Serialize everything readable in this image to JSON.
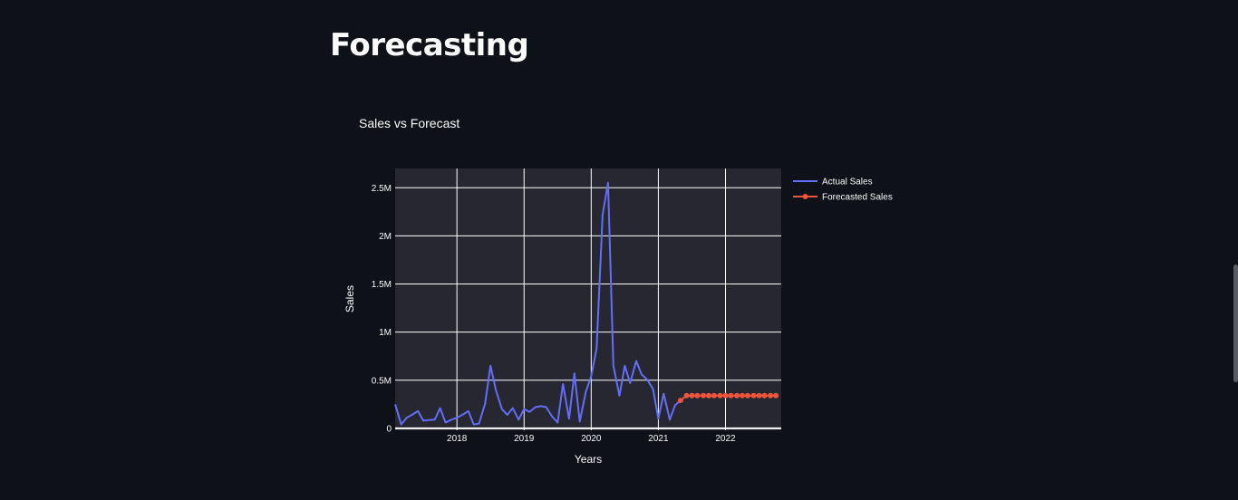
{
  "page": {
    "title": "Forecasting"
  },
  "chart_data": {
    "type": "line",
    "title": "Sales vs Forecast",
    "xlabel": "Years",
    "ylabel": "Sales",
    "x_ticks": [
      "2018",
      "2019",
      "2020",
      "2021",
      "2022"
    ],
    "y_ticks": [
      "0",
      "0.5M",
      "1M",
      "1.5M",
      "2M",
      "2.5M"
    ],
    "ylim": [
      -20000,
      2700000
    ],
    "xlim": [
      2017.08,
      2022.83
    ],
    "grid": true,
    "legend_position": "top-right-outside",
    "colors": {
      "actual": "#636efa",
      "forecast": "#ef553b",
      "plot_bg": "#262730",
      "page_bg": "#0e1117",
      "grid": "#ffffff"
    },
    "series": [
      {
        "name": "Actual Sales",
        "mode": "lines",
        "x": [
          2017.08,
          2017.17,
          2017.25,
          2017.33,
          2017.42,
          2017.5,
          2017.58,
          2017.67,
          2017.75,
          2017.83,
          2017.92,
          2018.0,
          2018.08,
          2018.17,
          2018.25,
          2018.33,
          2018.42,
          2018.5,
          2018.58,
          2018.67,
          2018.75,
          2018.83,
          2018.92,
          2019.0,
          2019.08,
          2019.17,
          2019.25,
          2019.33,
          2019.42,
          2019.5,
          2019.58,
          2019.67,
          2019.75,
          2019.83,
          2019.92,
          2020.0,
          2020.08,
          2020.17,
          2020.25,
          2020.33,
          2020.42,
          2020.5,
          2020.58,
          2020.67,
          2020.75,
          2020.83,
          2020.92,
          2021.0,
          2021.08,
          2021.17,
          2021.25,
          2021.33
        ],
        "values": [
          250000,
          40000,
          110000,
          140000,
          180000,
          80000,
          85000,
          90000,
          210000,
          60000,
          90000,
          110000,
          140000,
          180000,
          40000,
          50000,
          260000,
          650000,
          400000,
          200000,
          140000,
          210000,
          90000,
          200000,
          170000,
          220000,
          230000,
          220000,
          120000,
          60000,
          460000,
          100000,
          570000,
          70000,
          380000,
          540000,
          830000,
          2220000,
          2550000,
          650000,
          340000,
          650000,
          470000,
          700000,
          560000,
          510000,
          410000,
          100000,
          360000,
          90000,
          240000,
          290000
        ]
      },
      {
        "name": "Forecasted Sales",
        "mode": "lines+markers",
        "x": [
          2021.33,
          2021.42,
          2021.5,
          2021.58,
          2021.67,
          2021.75,
          2021.83,
          2021.92,
          2022.0,
          2022.08,
          2022.17,
          2022.25,
          2022.33,
          2022.42,
          2022.5,
          2022.58,
          2022.67,
          2022.75
        ],
        "values": [
          290000,
          340000,
          340000,
          340000,
          340000,
          340000,
          340000,
          340000,
          340000,
          340000,
          340000,
          340000,
          340000,
          340000,
          340000,
          340000,
          340000,
          340000
        ]
      }
    ]
  }
}
